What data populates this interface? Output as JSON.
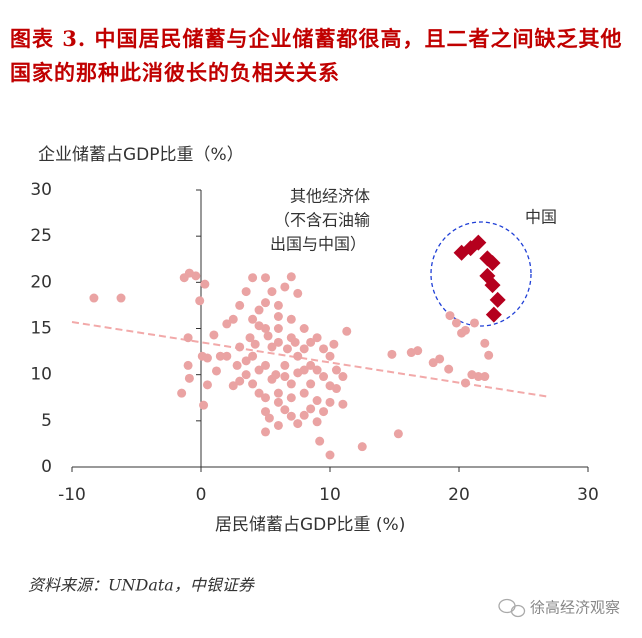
{
  "chart_data": {
    "type": "scatter",
    "title": "图表 3. 中国居民储蓄与企业储蓄都很高，且二者之间缺乏其他国家的那种此消彼长的负相关关系",
    "y_label": "企业储蓄占GDP比重（%）",
    "x_label": "居民储蓄占GDP比重 (%)",
    "annotations": [
      "其他经济体",
      "（不含石油输",
      "出国与中国）",
      "中国"
    ],
    "source": "资料来源：UNData，中银证券",
    "watermark": "徐高经济观察",
    "xlim": [
      -10,
      30
    ],
    "xticks": [
      -10,
      0,
      10,
      20,
      30
    ],
    "ylim": [
      0,
      30
    ],
    "yticks": [
      0,
      5,
      10,
      15,
      20,
      25,
      30
    ],
    "trendline": {
      "x": [
        -10,
        27
      ],
      "y": [
        15.7,
        7.6
      ],
      "color": "#f2a9a9"
    },
    "series": [
      {
        "marker": "circle",
        "color": "#eaa3a3",
        "x": [
          -8.3,
          -6.2,
          -1.3,
          -0.9,
          -0.4,
          0.3,
          -0.1,
          -1,
          -1.5,
          -1,
          0.2,
          0.5,
          0.1,
          0.5,
          -0.9,
          1,
          1.5,
          1.2,
          2,
          2.5,
          3,
          3.5,
          4,
          5,
          5.5,
          6,
          6.5,
          7,
          7.5,
          4.5,
          5,
          5.5,
          6,
          3,
          2,
          3.5,
          4,
          4.5,
          5,
          5.3,
          5,
          6,
          6.5,
          7,
          7.5,
          8,
          8.5,
          9,
          9.5,
          9.2,
          10,
          8.5,
          9.5,
          10,
          10.5,
          11,
          11.3,
          10.3,
          9,
          8,
          7.5,
          6.5,
          7,
          6,
          5.5,
          5,
          4,
          3.8,
          4.5,
          6,
          7,
          8,
          8.5,
          9,
          8,
          7,
          6,
          5,
          4.5,
          3,
          2.5,
          9,
          10,
          10.5,
          11,
          10,
          9.5,
          8.5,
          7,
          6,
          5,
          4,
          3.5,
          2.8,
          6.5,
          7.5,
          8,
          5.8,
          6.7,
          7.3,
          4.2,
          5.2,
          12.5,
          15.3,
          14.8,
          16.3,
          16.8,
          18,
          18.5,
          19.2,
          19.3,
          20.2,
          20.5,
          21.2,
          22,
          22.3,
          22,
          21.5,
          21,
          20.5,
          19.8
        ],
        "y": [
          18.3,
          18.3,
          20.5,
          21,
          20.7,
          19.8,
          18,
          14,
          8,
          11,
          6.7,
          8.9,
          12,
          11.8,
          9.6,
          14.3,
          12,
          10.4,
          15.5,
          16,
          17.5,
          19,
          20.5,
          20.5,
          19,
          17.5,
          19.5,
          20.6,
          18.8,
          17,
          15,
          13,
          15,
          13,
          12,
          10,
          9,
          8,
          6,
          5.3,
          3.8,
          4.5,
          6.2,
          5.5,
          4.7,
          5.6,
          6.3,
          4.9,
          6,
          2.8,
          1.3,
          9,
          9.8,
          8.8,
          10.5,
          9.8,
          14.7,
          13.3,
          14,
          15,
          12,
          11,
          9,
          8,
          9.5,
          11,
          12,
          14,
          15.3,
          13.5,
          14,
          12.8,
          11,
          10.5,
          8,
          7.5,
          7,
          7.5,
          10.5,
          9.3,
          8.8,
          7.2,
          7,
          8.5,
          6.8,
          12,
          12.8,
          13.5,
          16,
          16.3,
          17.8,
          16,
          11.5,
          11,
          9.8,
          10.2,
          10.5,
          10,
          12.8,
          13.5,
          13.3,
          14.2,
          2.2,
          3.6,
          12.2,
          12.4,
          12.6,
          11.3,
          11.7,
          10.6,
          16.4,
          14.5,
          14.8,
          15.6,
          13.4,
          12.1,
          9.8,
          9.8,
          10,
          9.1,
          15.6
        ]
      },
      {
        "marker": "diamond",
        "color": "#b5001e",
        "x": [
          20.2,
          20.9,
          21.5,
          22.2,
          22.6,
          22.2,
          22.6,
          23.0,
          22.7
        ],
        "y": [
          23.2,
          23.7,
          24.3,
          22.6,
          22.1,
          20.7,
          19.7,
          18.1,
          16.5
        ]
      }
    ]
  }
}
